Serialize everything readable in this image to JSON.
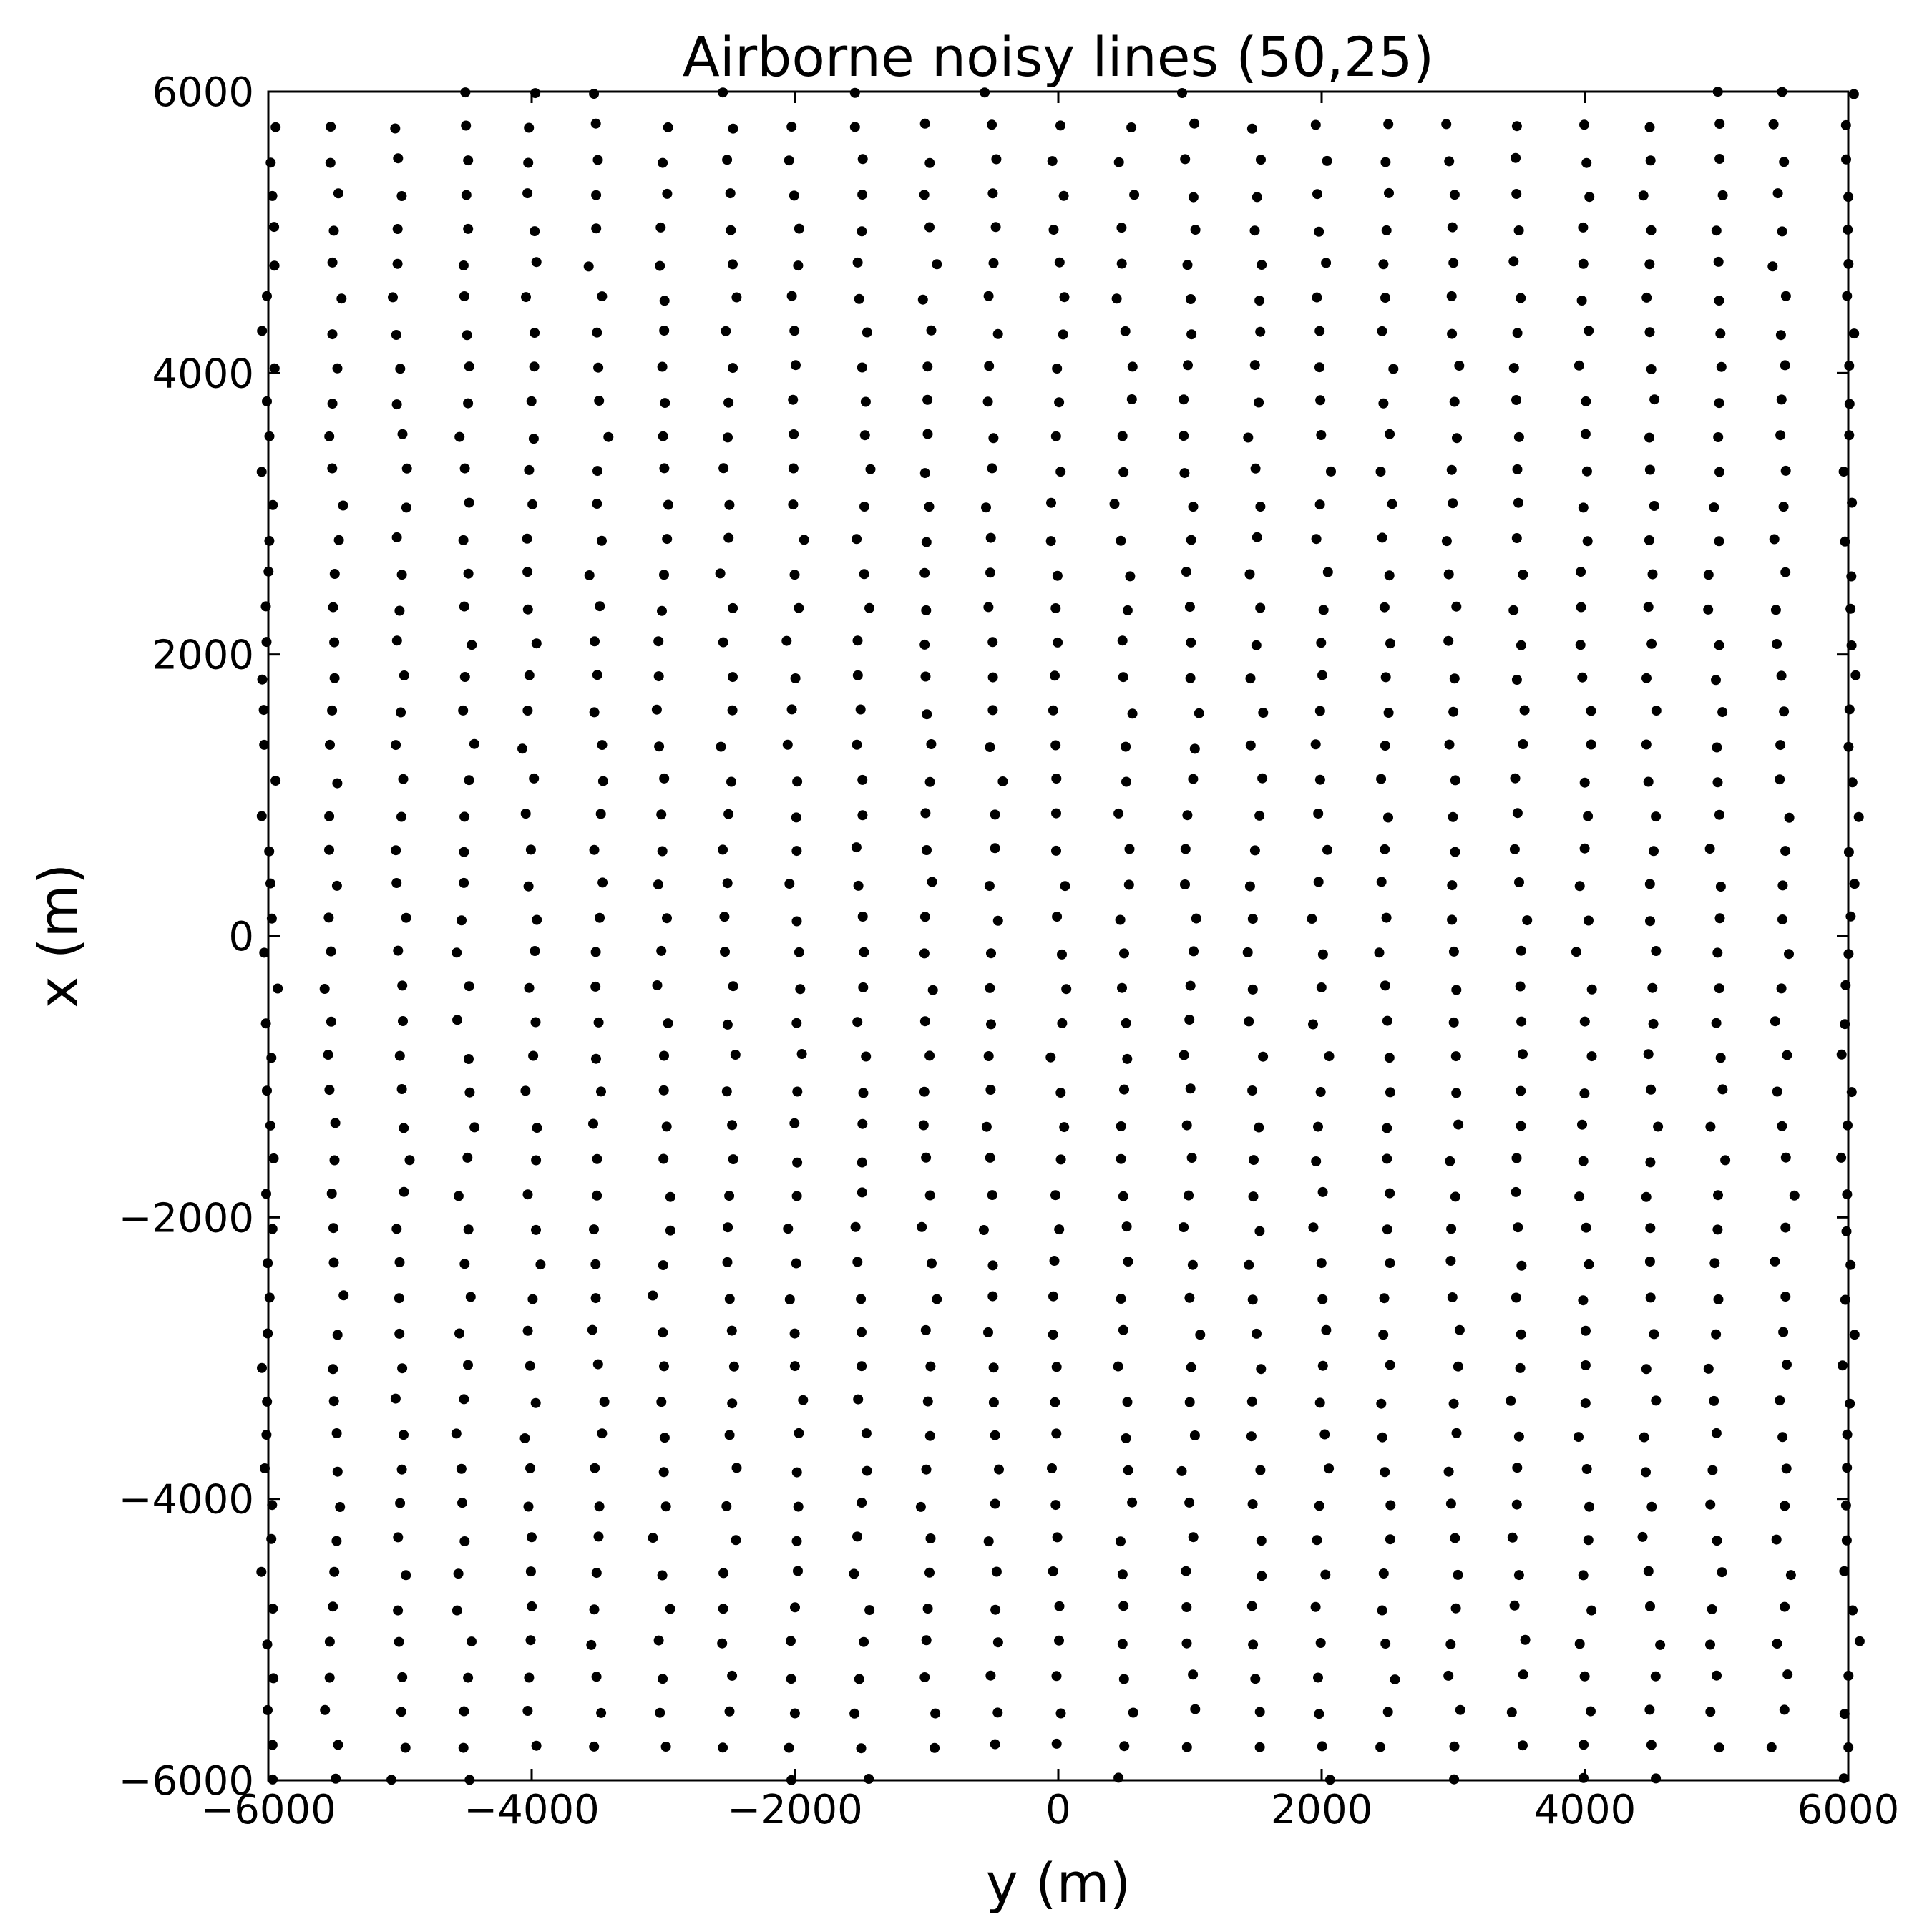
{
  "chart_data": {
    "type": "scatter",
    "title": "Airborne noisy lines (50,25)",
    "xlabel": "y (m)",
    "ylabel": "x (m)",
    "xlim": [
      -6000,
      6000
    ],
    "ylim": [
      -6000,
      6000
    ],
    "x_ticks": [
      -6000,
      -4000,
      -2000,
      0,
      2000,
      4000,
      6000
    ],
    "y_ticks": [
      -6000,
      -4000,
      -2000,
      0,
      2000,
      4000,
      6000
    ],
    "x_tick_labels": [
      "−6000",
      "−4000",
      "−2000",
      "0",
      "2000",
      "4000",
      "6000"
    ],
    "y_tick_labels": [
      "−6000",
      "−4000",
      "−2000",
      "0",
      "2000",
      "4000",
      "6000"
    ],
    "grid": false,
    "marker_color": "#000000",
    "series": [
      {
        "description": "25 north-south flight lines, 50 samples each, with positional noise",
        "lines_y": [
          -6000,
          -5500,
          -5000,
          -4500,
          -4000,
          -3500,
          -3000,
          -2500,
          -2000,
          -1500,
          -1000,
          -500,
          0,
          500,
          1000,
          1500,
          2000,
          2500,
          3000,
          3500,
          4000,
          4500,
          5000,
          5500,
          6000
        ],
        "samples_x_range": [
          -6000,
          6000
        ],
        "samples_per_line": 50,
        "noise_amplitude_m": 60
      }
    ]
  }
}
